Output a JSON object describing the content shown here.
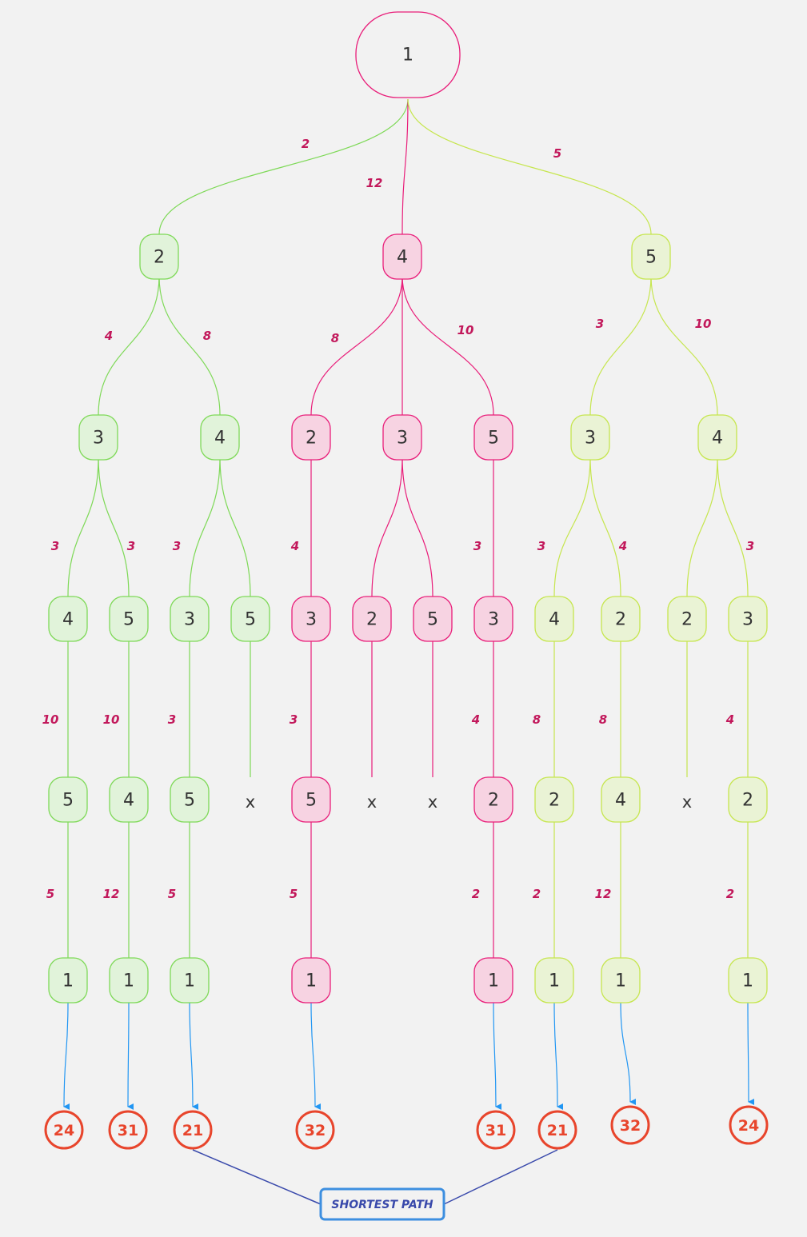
{
  "colors": {
    "branch_a": "#7ed957",
    "branch_a_fill": "#e1f3da",
    "branch_b": "#e91e7a",
    "branch_b_fill": "#f7d3e2",
    "branch_c": "#c6e64e",
    "branch_c_fill": "#eaf3d5",
    "weight": "#c2185b",
    "arrow": "#2196f3",
    "total": "#e8452c",
    "shortest": "#3949ab",
    "shortest_box": "#3d8fe0"
  },
  "root": {
    "label": "1"
  },
  "branches": [
    {
      "id": "a",
      "label": "2",
      "weight": "2",
      "children": [
        {
          "label": "3",
          "weight": "4",
          "children": [
            {
              "label": "4",
              "weight": "3",
              "path": [
                {
                  "weight": "10",
                  "label": "5"
                },
                {
                  "weight": "5",
                  "label": "1"
                }
              ],
              "total": "24"
            },
            {
              "label": "5",
              "weight": "3",
              "path": [
                {
                  "weight": "10",
                  "label": "4"
                },
                {
                  "weight": "12",
                  "label": "1"
                }
              ],
              "total": "31"
            }
          ]
        },
        {
          "label": "4",
          "weight": "8",
          "children": [
            {
              "label": "3",
              "weight": "3",
              "path": [
                {
                  "weight": "3",
                  "label": "5"
                },
                {
                  "weight": "5",
                  "label": "1"
                }
              ],
              "total": "21"
            },
            {
              "label": "5",
              "weight": "",
              "dead_end": "x"
            }
          ]
        }
      ]
    },
    {
      "id": "b",
      "label": "4",
      "weight": "12",
      "children": [
        {
          "label": "2",
          "weight": "8",
          "children": [
            {
              "label": "3",
              "weight": "4",
              "path": [
                {
                  "weight": "3",
                  "label": "5"
                },
                {
                  "weight": "5",
                  "label": "1"
                }
              ],
              "total": "32"
            }
          ]
        },
        {
          "label": "3",
          "weight": "",
          "children": [
            {
              "label": "2",
              "weight": "",
              "dead_end": "x"
            },
            {
              "label": "5",
              "weight": "",
              "dead_end": "x"
            }
          ]
        },
        {
          "label": "5",
          "weight": "10",
          "children": [
            {
              "label": "3",
              "weight": "3",
              "path": [
                {
                  "weight": "4",
                  "label": "2"
                },
                {
                  "weight": "2",
                  "label": "1"
                }
              ],
              "total": "31"
            }
          ]
        }
      ]
    },
    {
      "id": "c",
      "label": "5",
      "weight": "5",
      "children": [
        {
          "label": "3",
          "weight": "3",
          "children": [
            {
              "label": "4",
              "weight": "3",
              "path": [
                {
                  "weight": "8",
                  "label": "2"
                },
                {
                  "weight": "2",
                  "label": "1"
                }
              ],
              "total": "21"
            },
            {
              "label": "2",
              "weight": "4",
              "path": [
                {
                  "weight": "8",
                  "label": "4"
                },
                {
                  "weight": "12",
                  "label": "1"
                }
              ],
              "total": "32"
            }
          ]
        },
        {
          "label": "4",
          "weight": "10",
          "children": [
            {
              "label": "2",
              "weight": "",
              "dead_end": "x"
            },
            {
              "label": "3",
              "weight": "3",
              "path": [
                {
                  "weight": "4",
                  "label": "2"
                },
                {
                  "weight": "2",
                  "label": "1"
                }
              ],
              "total": "24"
            }
          ]
        }
      ]
    }
  ],
  "shortest_path_label": "SHORTEST PATH"
}
